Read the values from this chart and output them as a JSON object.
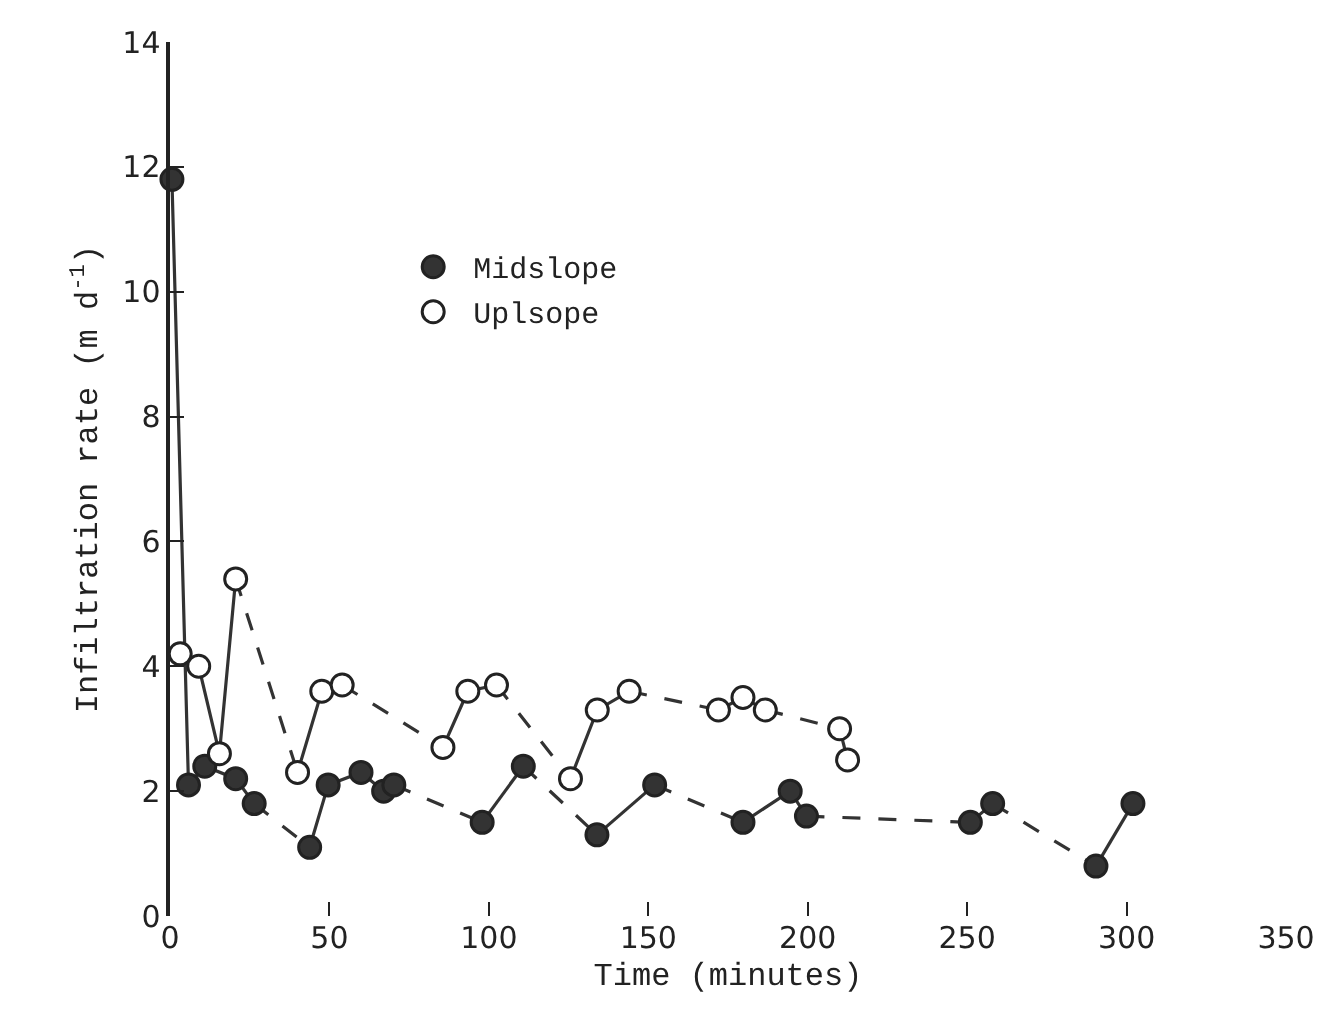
{
  "chart_data": {
    "type": "scatter",
    "xlabel": "Time (minutes)",
    "ylabel": "Infiltration rate (m d$^{-1}$)",
    "xlim": [
      0,
      350
    ],
    "xticks": [
      0,
      50,
      100,
      150,
      200,
      250,
      300,
      350
    ],
    "ylim": [
      0,
      14
    ],
    "yticks": [
      0,
      2,
      4,
      6,
      8,
      10,
      12,
      14
    ],
    "legend": "top left",
    "marker": "circle",
    "series": [
      {
        "type": "line",
        "line_style": "solid",
        "marker": "none",
        "color": "#333333",
        "x": [
          0.6,
          5.8,
          10.9,
          20.6,
          26.4
        ],
        "values": [
          11.8,
          2.1,
          2.4,
          2.2,
          1.8
        ]
      },
      {
        "type": "line",
        "line_style": "dashed",
        "marker": "none",
        "color": "#333333",
        "x": [
          26.4,
          43.8
        ],
        "values": [
          1.8,
          1.1
        ]
      },
      {
        "type": "line",
        "line_style": "solid",
        "marker": "none",
        "color": "#333333",
        "x": [
          43.8,
          49.6,
          59.9,
          67,
          70.2
        ],
        "values": [
          1.1,
          2.1,
          2.3,
          2.0,
          2.1
        ]
      },
      {
        "type": "line",
        "line_style": "dashed",
        "marker": "none",
        "color": "#333333",
        "x": [
          70.2,
          97.9
        ],
        "values": [
          2.1,
          1.5
        ]
      },
      {
        "type": "line",
        "line_style": "solid",
        "marker": "none",
        "color": "#333333",
        "x": [
          97.9,
          110.8
        ],
        "values": [
          1.5,
          2.4
        ]
      },
      {
        "type": "line",
        "line_style": "dashed",
        "marker": "none",
        "color": "#333333",
        "x": [
          110.8,
          133.9
        ],
        "values": [
          2.4,
          1.3
        ]
      },
      {
        "type": "line",
        "line_style": "solid",
        "marker": "none",
        "color": "#333333",
        "x": [
          133.9,
          152
        ],
        "values": [
          1.3,
          2.1
        ]
      },
      {
        "type": "line",
        "line_style": "dashed",
        "marker": "none",
        "color": "#333333",
        "x": [
          152,
          179.7
        ],
        "values": [
          2.1,
          1.5
        ]
      },
      {
        "type": "line",
        "line_style": "solid",
        "marker": "none",
        "color": "#333333",
        "x": [
          179.7,
          194.5,
          199.6
        ],
        "values": [
          1.5,
          2.0,
          1.6
        ]
      },
      {
        "type": "line",
        "line_style": "dashed",
        "marker": "none",
        "color": "#333333",
        "x": [
          199.6,
          251
        ],
        "values": [
          1.6,
          1.5
        ]
      },
      {
        "type": "line",
        "line_style": "solid",
        "marker": "none",
        "color": "#333333",
        "x": [
          251,
          258
        ],
        "values": [
          1.5,
          1.8
        ]
      },
      {
        "type": "line",
        "line_style": "dashed",
        "marker": "none",
        "color": "#333333",
        "x": [
          258,
          290.4
        ],
        "values": [
          1.8,
          0.8
        ]
      },
      {
        "type": "line",
        "line_style": "solid",
        "marker": "none",
        "color": "#333333",
        "x": [
          290.4,
          302
        ],
        "values": [
          0.8,
          1.8
        ]
      },
      {
        "type": "line",
        "line_style": "solid",
        "marker": "none",
        "color": "#333333",
        "x": [
          3.2,
          9,
          15.5,
          20.6
        ],
        "values": [
          4.2,
          4.0,
          2.6,
          5.4
        ]
      },
      {
        "type": "line",
        "line_style": "dashed",
        "marker": "none",
        "color": "#333333",
        "x": [
          20.6,
          40
        ],
        "values": [
          5.4,
          2.3
        ]
      },
      {
        "type": "line",
        "line_style": "solid",
        "marker": "none",
        "color": "#333333",
        "x": [
          40,
          47.6,
          54
        ],
        "values": [
          2.3,
          3.6,
          3.7
        ]
      },
      {
        "type": "line",
        "line_style": "dashed",
        "marker": "none",
        "color": "#333333",
        "x": [
          54,
          85.6
        ],
        "values": [
          3.7,
          2.7
        ]
      },
      {
        "type": "line",
        "line_style": "solid",
        "marker": "none",
        "color": "#333333",
        "x": [
          85.6,
          93.4,
          102.4
        ],
        "values": [
          2.7,
          3.6,
          3.7
        ]
      },
      {
        "type": "line",
        "line_style": "dashed",
        "marker": "none",
        "color": "#333333",
        "x": [
          102.4,
          125.6
        ],
        "values": [
          3.7,
          2.2
        ]
      },
      {
        "type": "line",
        "line_style": "solid",
        "marker": "none",
        "color": "#333333",
        "x": [
          125.6,
          134,
          144
        ],
        "values": [
          2.2,
          3.3,
          3.6
        ]
      },
      {
        "type": "line",
        "line_style": "dashed",
        "marker": "none",
        "color": "#333333",
        "x": [
          144,
          172
        ],
        "values": [
          3.6,
          3.3
        ]
      },
      {
        "type": "line",
        "line_style": "solid",
        "marker": "none",
        "color": "#333333",
        "x": [
          172,
          179.7,
          186.7
        ],
        "values": [
          3.3,
          3.5,
          3.3
        ]
      },
      {
        "type": "line",
        "line_style": "dashed",
        "marker": "none",
        "color": "#333333",
        "x": [
          186.7,
          210
        ],
        "values": [
          3.3,
          3.0
        ]
      },
      {
        "type": "line",
        "line_style": "solid",
        "marker": "none",
        "color": "#333333",
        "x": [
          210,
          212.5
        ],
        "values": [
          3.0,
          2.5
        ]
      },
      {
        "name": "Midslope",
        "color": "#333333",
        "x": [
          0.6,
          5.8,
          10.9,
          20.6,
          26.4,
          43.8,
          49.6,
          59.9,
          67,
          70.2,
          97.9,
          110.8,
          133.9,
          152,
          179.7,
          194.5,
          199.6,
          251,
          258,
          290.4,
          302
        ],
        "values": [
          11.8,
          2.1,
          2.4,
          2.2,
          1.8,
          1.1,
          2.1,
          2.3,
          2.0,
          2.1,
          1.5,
          2.4,
          1.3,
          2.1,
          1.5,
          2.0,
          1.6,
          1.5,
          1.8,
          0.8,
          1.8
        ]
      },
      {
        "name": "Uplsope",
        "color": "#ffffff",
        "x": [
          3.2,
          9,
          15.5,
          20.6,
          40,
          47.6,
          54,
          85.6,
          93.4,
          102.4,
          125.6,
          134,
          144,
          172,
          179.7,
          186.7,
          210,
          212.5
        ],
        "values": [
          4.2,
          4.0,
          2.6,
          5.4,
          2.3,
          3.6,
          3.7,
          2.7,
          3.6,
          3.7,
          2.2,
          3.3,
          3.6,
          3.3,
          3.5,
          3.3,
          3.0,
          2.5
        ]
      }
    ]
  }
}
